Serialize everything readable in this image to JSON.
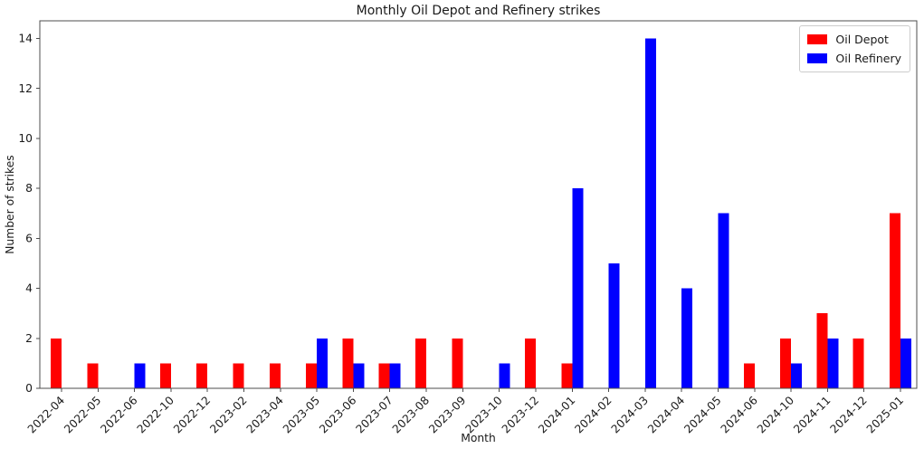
{
  "chart_data": {
    "type": "bar",
    "title": "Monthly Oil Depot and Refinery strikes",
    "xlabel": "Month",
    "ylabel": "Number of strikes",
    "categories": [
      "2022-04",
      "2022-05",
      "2022-06",
      "2022-10",
      "2022-12",
      "2023-02",
      "2023-04",
      "2023-05",
      "2023-06",
      "2023-07",
      "2023-08",
      "2023-09",
      "2023-10",
      "2023-12",
      "2024-01",
      "2024-02",
      "2024-03",
      "2024-04",
      "2024-05",
      "2024-06",
      "2024-10",
      "2024-11",
      "2024-12",
      "2025-01"
    ],
    "series": [
      {
        "name": "Oil Depot",
        "color": "#ff0000",
        "values": [
          2,
          1,
          0,
          1,
          1,
          1,
          1,
          1,
          2,
          1,
          2,
          2,
          0,
          2,
          1,
          0,
          0,
          0,
          0,
          1,
          2,
          3,
          2,
          7
        ]
      },
      {
        "name": "Oil Refinery",
        "color": "#0000ff",
        "values": [
          0,
          0,
          1,
          0,
          0,
          0,
          0,
          2,
          1,
          1,
          0,
          0,
          1,
          0,
          8,
          5,
          14,
          4,
          7,
          0,
          1,
          2,
          0,
          2
        ]
      }
    ],
    "yticks": [
      0,
      2,
      4,
      6,
      8,
      10,
      12,
      14
    ],
    "ylim": [
      0,
      14.7
    ],
    "grid": false,
    "legend_position": "upper right",
    "x_tick_rotation": 45,
    "colors": {
      "spine": "#4d4d4d",
      "text": "#1a1a1a",
      "legend_border": "#cccccc",
      "background": "#ffffff"
    }
  }
}
